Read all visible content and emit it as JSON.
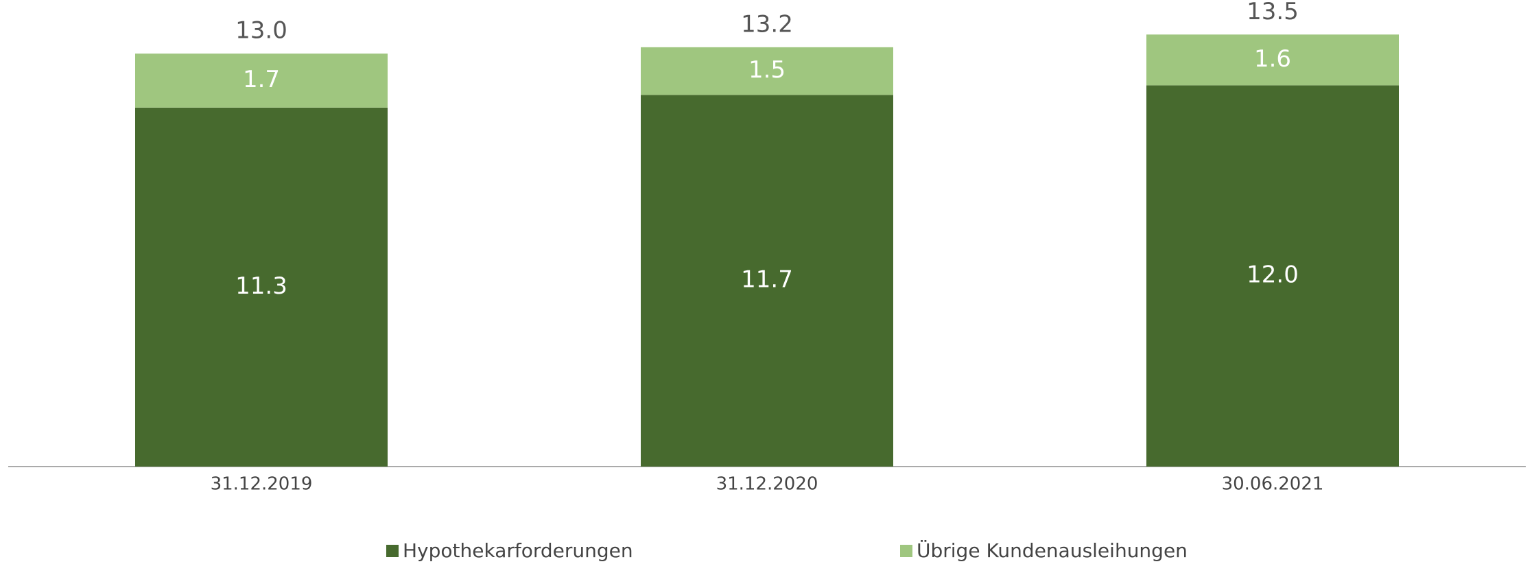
{
  "chart_data": {
    "type": "stacked_bar",
    "categories": [
      "31.12.2019",
      "31.12.2020",
      "30.06.2021"
    ],
    "series": [
      {
        "name": "Hypothekarforderungen",
        "color": "#476a2e",
        "values": [
          11.3,
          11.7,
          12
        ],
        "value_labels": [
          "11.3",
          "11.7",
          "12.0"
        ]
      },
      {
        "name": "Übrige Kundenausleihungen",
        "color": "#9fc67f",
        "values": [
          1.7,
          1.5,
          1.6
        ],
        "value_labels": [
          "1.7",
          "1.5",
          "1.6"
        ]
      }
    ],
    "totals": [
      13,
      13.2,
      13.5
    ],
    "total_labels": [
      "13.0",
      "13.2",
      "13.5"
    ]
  }
}
